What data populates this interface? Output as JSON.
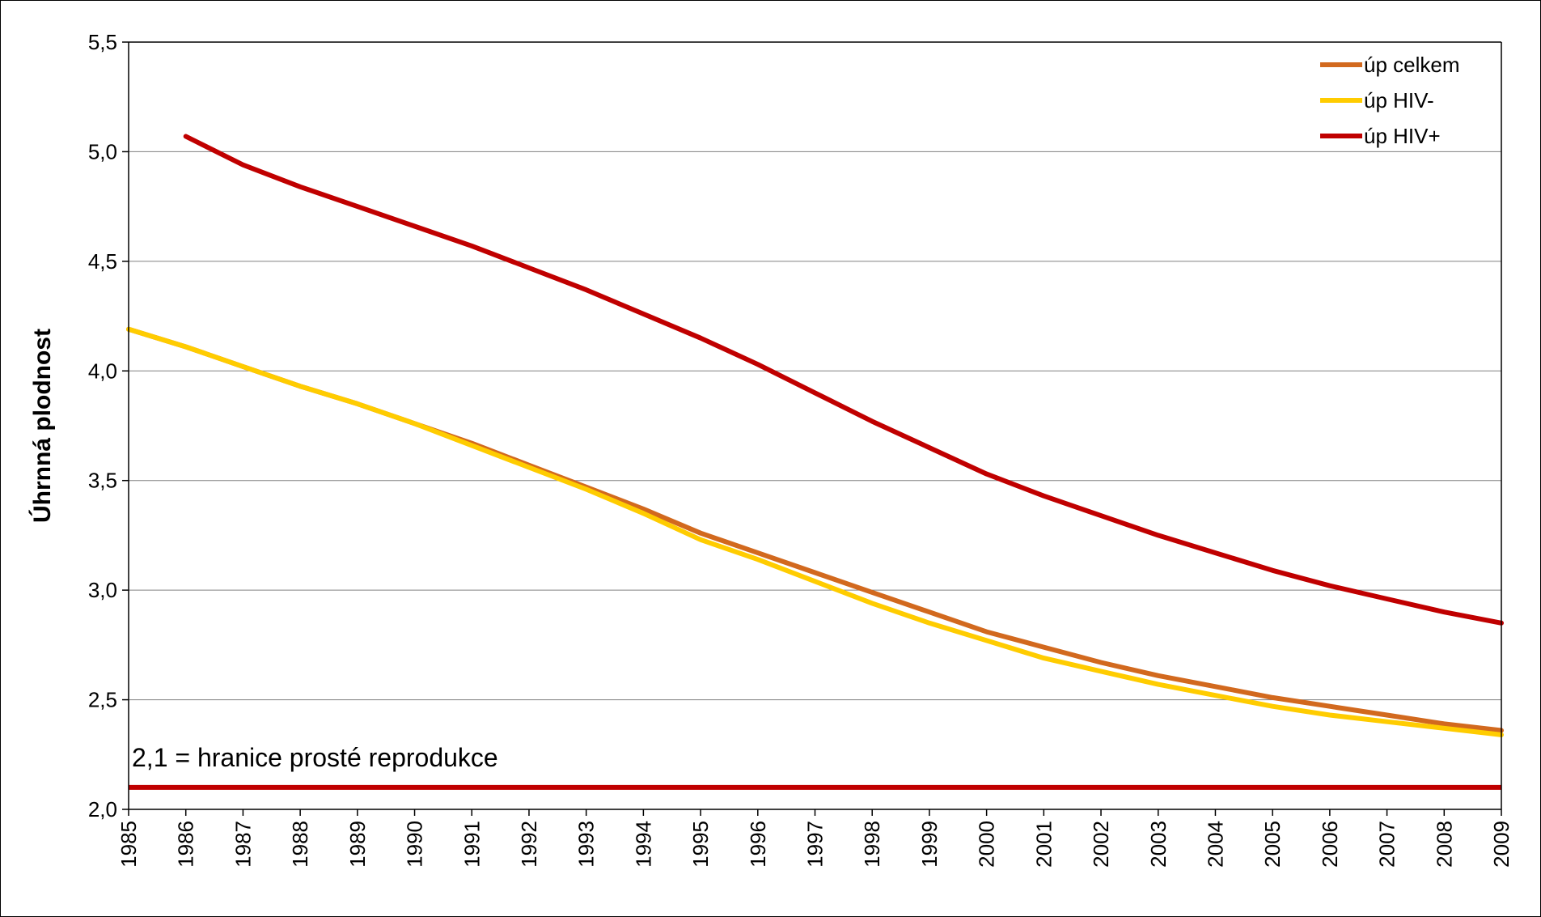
{
  "chart_data": {
    "type": "line",
    "ylabel": "Úhrnná plodnost",
    "xlabel": "",
    "title": "",
    "ylim": [
      2.0,
      5.5
    ],
    "y_ticks": [
      "2,0",
      "2,5",
      "3,0",
      "3,5",
      "4,0",
      "4,5",
      "5,0",
      "5,5"
    ],
    "y_tick_values": [
      2.0,
      2.5,
      3.0,
      3.5,
      4.0,
      4.5,
      5.0,
      5.5
    ],
    "grid": true,
    "legend_position": "top-right",
    "categories": [
      "1985",
      "1986",
      "1987",
      "1988",
      "1989",
      "1990",
      "1991",
      "1992",
      "1993",
      "1994",
      "1995",
      "1996",
      "1997",
      "1998",
      "1999",
      "2000",
      "2001",
      "2002",
      "2003",
      "2004",
      "2005",
      "2006",
      "2007",
      "2008",
      "2009"
    ],
    "series": [
      {
        "name": "úp celkem",
        "color": "#D2691E",
        "values": [
          4.19,
          4.11,
          4.02,
          3.93,
          3.85,
          3.76,
          3.67,
          3.57,
          3.47,
          3.37,
          3.26,
          3.17,
          3.08,
          2.99,
          2.9,
          2.81,
          2.74,
          2.67,
          2.61,
          2.56,
          2.51,
          2.47,
          2.43,
          2.39,
          2.36
        ]
      },
      {
        "name": "úp HIV-",
        "color": "#FFCC00",
        "values": [
          4.19,
          4.11,
          4.02,
          3.93,
          3.85,
          3.76,
          3.66,
          3.56,
          3.46,
          3.35,
          3.23,
          3.14,
          3.04,
          2.94,
          2.85,
          2.77,
          2.69,
          2.63,
          2.57,
          2.52,
          2.47,
          2.43,
          2.4,
          2.37,
          2.34
        ]
      },
      {
        "name": "úp HIV+",
        "color": "#C00000",
        "values": [
          null,
          5.07,
          4.94,
          4.84,
          4.75,
          4.66,
          4.57,
          4.47,
          4.37,
          4.26,
          4.15,
          4.03,
          3.9,
          3.77,
          3.65,
          3.53,
          3.43,
          3.34,
          3.25,
          3.17,
          3.09,
          3.02,
          2.96,
          2.9,
          2.85
        ]
      }
    ],
    "reference_line": {
      "value": 2.1,
      "color": "#C00000",
      "label": "2,1 = hranice prosté reprodukce"
    }
  }
}
